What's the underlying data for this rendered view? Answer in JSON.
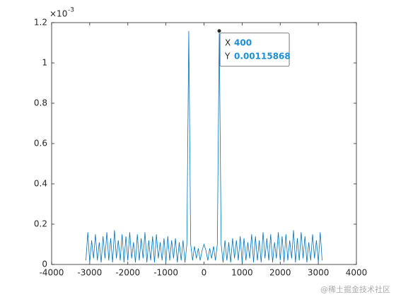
{
  "chart_data": {
    "type": "line",
    "y_multiplier": {
      "base": "×10",
      "exponent": "-3"
    },
    "x": [
      -3100,
      -3050,
      -3000,
      -2950,
      -2900,
      -2850,
      -2800,
      -2750,
      -2700,
      -2650,
      -2600,
      -2550,
      -2500,
      -2450,
      -2400,
      -2350,
      -2300,
      -2250,
      -2200,
      -2150,
      -2100,
      -2050,
      -2000,
      -1950,
      -1900,
      -1850,
      -1800,
      -1750,
      -1700,
      -1650,
      -1600,
      -1550,
      -1500,
      -1450,
      -1400,
      -1350,
      -1300,
      -1250,
      -1200,
      -1150,
      -1100,
      -1050,
      -1000,
      -950,
      -900,
      -850,
      -800,
      -750,
      -700,
      -650,
      -600,
      -550,
      -500,
      -450,
      -400,
      -350,
      -300,
      -250,
      -200,
      -150,
      -100,
      -50,
      0,
      50,
      100,
      150,
      200,
      250,
      300,
      350,
      400,
      450,
      500,
      550,
      600,
      650,
      700,
      750,
      800,
      850,
      900,
      950,
      1000,
      1050,
      1100,
      1150,
      1200,
      1250,
      1300,
      1350,
      1400,
      1450,
      1500,
      1550,
      1600,
      1650,
      1700,
      1750,
      1800,
      1850,
      1900,
      1950,
      2000,
      2050,
      2100,
      2150,
      2200,
      2250,
      2300,
      2350,
      2400,
      2450,
      2500,
      2550,
      2600,
      2650,
      2700,
      2750,
      2800,
      2850,
      2900,
      2950,
      3000,
      3050,
      3100
    ],
    "series": [
      {
        "color": "#0072BD",
        "values": [
          2e-05,
          0.00016,
          1e-05,
          0.00012,
          3e-05,
          0.00015,
          2e-05,
          0.00011,
          1e-05,
          0.00014,
          3e-05,
          0.00016,
          2e-05,
          0.00013,
          1e-05,
          0.00017,
          3e-05,
          0.00012,
          2e-05,
          0.00015,
          1e-05,
          0.00014,
          2e-05,
          0.00016,
          3e-05,
          0.00011,
          1e-05,
          0.00015,
          2e-05,
          0.00013,
          3e-05,
          0.00016,
          1e-05,
          0.00012,
          2e-05,
          0.00014,
          1e-05,
          0.00015,
          3e-05,
          0.00011,
          2e-05,
          0.00013,
          1e-05,
          0.00014,
          2e-05,
          0.00012,
          3e-05,
          0.00013,
          1e-05,
          0.00011,
          2e-05,
          0.00012,
          1e-05,
          0.0001,
          0.00115868,
          0.0001,
          2e-05,
          9e-05,
          3e-05,
          8e-05,
          2e-05,
          7e-05,
          0.0001,
          7e-05,
          2e-05,
          8e-05,
          3e-05,
          9e-05,
          2e-05,
          0.0001,
          0.00115868,
          0.0001,
          1e-05,
          0.00012,
          2e-05,
          0.00011,
          1e-05,
          0.00013,
          3e-05,
          0.00012,
          2e-05,
          0.00014,
          1e-05,
          0.00013,
          2e-05,
          0.00011,
          3e-05,
          0.00015,
          1e-05,
          0.00014,
          2e-05,
          0.00012,
          1e-05,
          0.00016,
          3e-05,
          0.00013,
          2e-05,
          0.00015,
          1e-05,
          0.00011,
          3e-05,
          0.00016,
          2e-05,
          0.00014,
          1e-05,
          0.00015,
          2e-05,
          0.00012,
          3e-05,
          0.00017,
          1e-05,
          0.00013,
          2e-05,
          0.00016,
          3e-05,
          0.00014,
          1e-05,
          0.00011,
          2e-05,
          0.00015,
          3e-05,
          0.00012,
          1e-05,
          0.00016,
          2e-05
        ]
      }
    ],
    "xlim": [
      -4000,
      4000
    ],
    "xticks": [
      -4000,
      -3000,
      -2000,
      -1000,
      0,
      1000,
      2000,
      3000,
      4000
    ],
    "ylim": [
      0,
      0.0012
    ],
    "yticks": [
      0,
      {
        "value": 0.0002,
        "label": "0.2"
      },
      {
        "value": 0.0004,
        "label": "0.4"
      },
      {
        "value": 0.0006,
        "label": "0.6"
      },
      {
        "value": 0.0008,
        "label": "0.8"
      },
      {
        "value": 0.001,
        "label": "1"
      },
      {
        "value": 0.0012,
        "label": "1.2"
      }
    ],
    "datatip": {
      "x_name": "X",
      "y_name": "Y",
      "x": 400,
      "y": 0.00115868
    },
    "watermark": "@稀土掘金技术社区"
  }
}
